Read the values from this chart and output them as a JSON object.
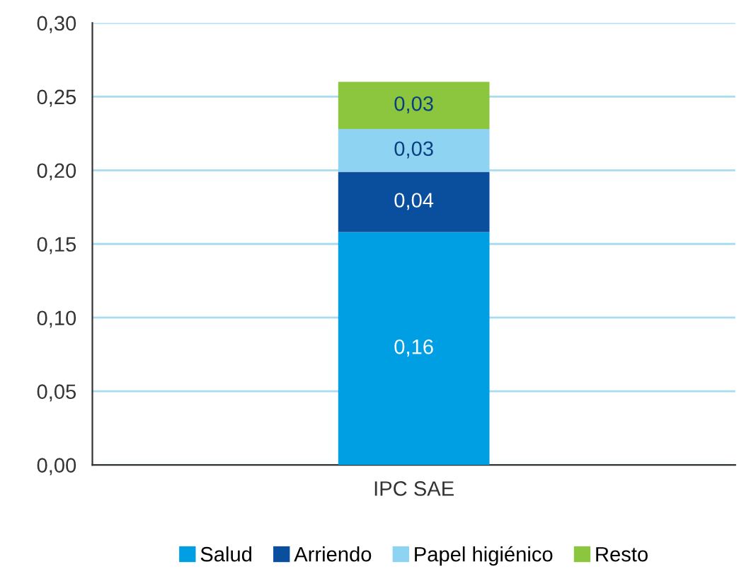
{
  "chart_data": {
    "type": "bar",
    "stacked": true,
    "categories": [
      "IPC SAE"
    ],
    "series": [
      {
        "name": "Salud",
        "color": "#009fe3",
        "values": [
          0.158
        ],
        "value_labels": [
          "0,16"
        ]
      },
      {
        "name": "Arriendo",
        "color": "#0a4f9e",
        "values": [
          0.041
        ],
        "value_labels": [
          "0,04"
        ]
      },
      {
        "name": "Papel higiénico",
        "color": "#8fd3f2",
        "values": [
          0.029
        ],
        "value_labels": [
          "0,03"
        ]
      },
      {
        "name": "Resto",
        "color": "#8cc63f",
        "values": [
          0.032
        ],
        "value_labels": [
          "0,03"
        ]
      }
    ],
    "ylim": [
      0,
      0.3
    ],
    "yticks": [
      {
        "value": 0,
        "label": "0,00"
      },
      {
        "value": 0.05,
        "label": "0,05"
      },
      {
        "value": 0.1,
        "label": "0,10"
      },
      {
        "value": 0.15,
        "label": "0,15"
      },
      {
        "value": 0.2,
        "label": "0,20"
      },
      {
        "value": 0.25,
        "label": "0,25"
      },
      {
        "value": 0.3,
        "label": "0,30"
      }
    ],
    "grid": "y",
    "legend": "bottom"
  }
}
